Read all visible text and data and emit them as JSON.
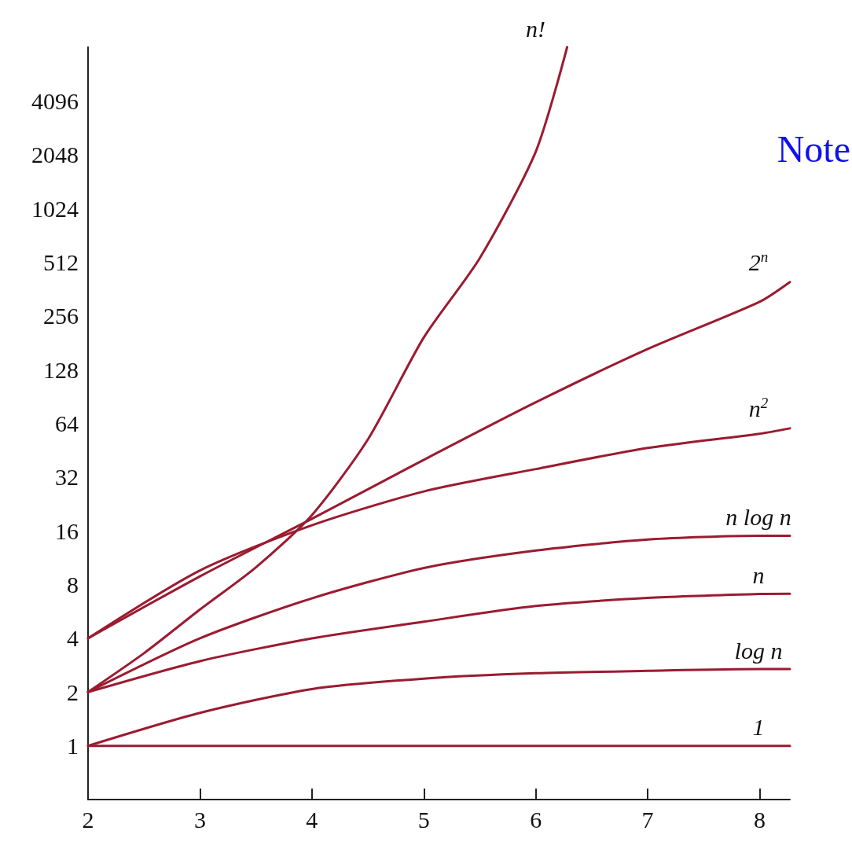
{
  "chart_data": {
    "type": "line",
    "xlim": [
      2,
      8.27
    ],
    "xticks": [
      2,
      3,
      4,
      5,
      6,
      7,
      8
    ],
    "ylim": [
      0.5,
      8192
    ],
    "yticks": [
      1,
      2,
      4,
      8,
      16,
      32,
      64,
      128,
      256,
      512,
      1024,
      2048,
      4096
    ],
    "log": "y",
    "grid": false,
    "legend": false,
    "marker": "none",
    "line_style": "solid",
    "annotations": [
      "Note"
    ],
    "series": [
      {
        "name": "n!",
        "color": "#9b1b30",
        "x": [
          2,
          2.5,
          3,
          3.5,
          4,
          4.5,
          5,
          5.5,
          6,
          6.28
        ],
        "values": [
          2,
          3.3,
          5.8,
          10,
          19.6,
          52,
          194,
          540,
          2130,
          8192
        ]
      },
      {
        "name": "2$^{n}$",
        "color": "#9b1b30",
        "x": [
          2,
          3,
          4,
          5,
          6,
          7,
          8,
          8.27
        ],
        "values": [
          4,
          8.9,
          18.7,
          40,
          84,
          167,
          307,
          396
        ]
      },
      {
        "name": "n$^{2}$",
        "color": "#9b1b30",
        "x": [
          2,
          3,
          4,
          5,
          6,
          7,
          8,
          8.27
        ],
        "values": [
          4,
          9.6,
          17.2,
          26.6,
          35.5,
          46.6,
          56,
          60
        ]
      },
      {
        "name": "n log n",
        "color": "#9b1b30",
        "x": [
          2,
          3,
          4,
          5,
          6,
          7,
          8,
          8.27
        ],
        "values": [
          2,
          4,
          6.7,
          9.9,
          12.4,
          14.3,
          15,
          15
        ]
      },
      {
        "name": "n",
        "color": "#9b1b30",
        "x": [
          2,
          3,
          4,
          5,
          6,
          7,
          8,
          8.27
        ],
        "values": [
          2,
          2.98,
          4,
          4.96,
          6.07,
          6.73,
          7.08,
          7.1
        ]
      },
      {
        "name": "log n",
        "color": "#9b1b30",
        "x": [
          2,
          3,
          4,
          5,
          6,
          7,
          8,
          8.27
        ],
        "values": [
          1,
          1.53,
          2.08,
          2.38,
          2.55,
          2.63,
          2.69,
          2.69
        ]
      },
      {
        "name": "1",
        "color": "#9b1b30",
        "x": [
          2,
          8.27
        ],
        "values": [
          1,
          1
        ]
      }
    ]
  }
}
